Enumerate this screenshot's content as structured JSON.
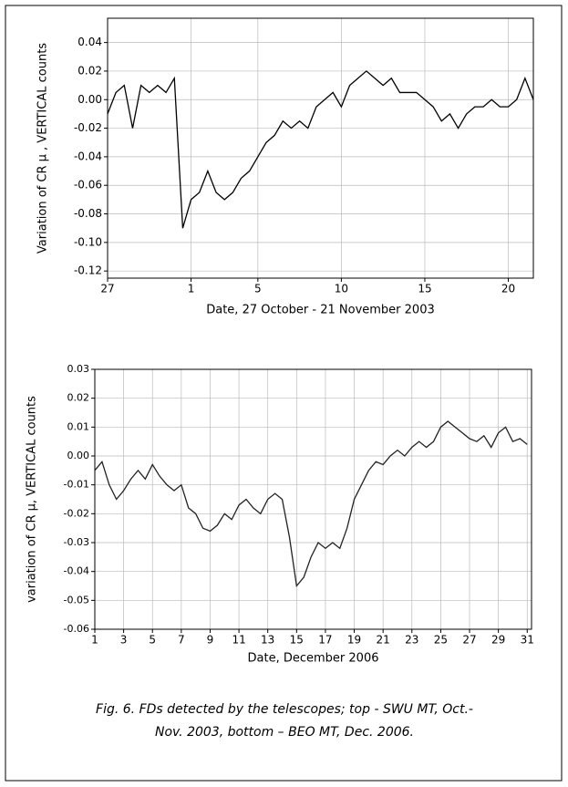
{
  "charts": [
    {
      "type": "line",
      "y_label": "Variation of CR μ , VERTICAL counts",
      "x_label": "Date, 27 October - 21 November 2003",
      "xlim": [
        0,
        25.5
      ],
      "ylim": [
        -0.125,
        0.057
      ],
      "xticks": [
        {
          "value": 0,
          "label": "27"
        },
        {
          "value": 5,
          "label": "1"
        },
        {
          "value": 9,
          "label": "5"
        },
        {
          "value": 14,
          "label": "10"
        },
        {
          "value": 19,
          "label": "15"
        },
        {
          "value": 24,
          "label": "20"
        }
      ],
      "yticks": [
        0.04,
        0.02,
        {
          "value": 0,
          "label": "0.00"
        },
        -0.02,
        -0.04,
        -0.06,
        -0.08,
        {
          "value": -0.1,
          "label": "-0.10"
        },
        -0.12
      ],
      "grid": true,
      "series": [
        {
          "color": "#000000",
          "x": [
            0,
            0.5,
            1,
            1.5,
            2,
            2.5,
            3,
            3.5,
            4,
            4.5,
            5,
            5.5,
            6,
            6.5,
            7,
            7.5,
            8,
            8.5,
            9,
            9.5,
            10,
            10.5,
            11,
            11.5,
            12,
            12.5,
            13,
            13.5,
            14,
            14.5,
            15,
            15.5,
            16,
            16.5,
            17,
            17.5,
            18,
            18.5,
            19,
            19.5,
            20,
            20.5,
            21,
            21.5,
            22,
            22.5,
            23,
            23.5,
            24,
            24.5,
            25,
            25.5
          ],
          "values": [
            -0.01,
            0.005,
            0.01,
            -0.02,
            0.01,
            0.005,
            0.01,
            0.005,
            0.015,
            -0.09,
            -0.07,
            -0.065,
            -0.05,
            -0.065,
            -0.07,
            -0.065,
            -0.055,
            -0.05,
            -0.04,
            -0.03,
            -0.025,
            -0.015,
            -0.02,
            -0.015,
            -0.02,
            -0.005,
            0.0,
            0.005,
            -0.005,
            0.01,
            0.015,
            0.02,
            0.015,
            0.01,
            0.015,
            0.005,
            0.005,
            0.005,
            0.0,
            -0.005,
            -0.015,
            -0.01,
            -0.02,
            -0.01,
            -0.005,
            -0.005,
            0.0,
            -0.005,
            -0.005,
            0.0,
            0.015,
            0.0
          ]
        }
      ]
    },
    {
      "type": "line",
      "y_label": "variation of CR μ, VERTICAL counts",
      "x_label": "Date, December 2006",
      "xlim": [
        1,
        31.3
      ],
      "ylim": [
        -0.06,
        0.03
      ],
      "xticks": [
        1,
        3,
        5,
        7,
        9,
        11,
        13,
        15,
        17,
        19,
        21,
        23,
        25,
        27,
        29,
        31
      ],
      "yticks": [
        0.03,
        0.02,
        0.01,
        {
          "value": 0,
          "label": "0.00"
        },
        -0.01,
        -0.02,
        -0.03,
        -0.04,
        -0.05,
        -0.06
      ],
      "grid": true,
      "series": [
        {
          "color": "#222222",
          "x": [
            1,
            1.5,
            2,
            2.5,
            3,
            3.5,
            4,
            4.5,
            5,
            5.5,
            6,
            6.5,
            7,
            7.5,
            8,
            8.5,
            9,
            9.5,
            10,
            10.5,
            11,
            11.5,
            12,
            12.5,
            13,
            13.5,
            14,
            14.5,
            15,
            15.5,
            16,
            16.5,
            17,
            17.5,
            18,
            18.5,
            19,
            19.5,
            20,
            20.5,
            21,
            21.5,
            22,
            22.5,
            23,
            23.5,
            24,
            24.5,
            25,
            25.5,
            26,
            26.5,
            27,
            27.5,
            28,
            28.5,
            29,
            29.5,
            30,
            30.5,
            31
          ],
          "values": [
            -0.005,
            -0.002,
            -0.01,
            -0.015,
            -0.012,
            -0.008,
            -0.005,
            -0.008,
            -0.003,
            -0.007,
            -0.01,
            -0.012,
            -0.01,
            -0.018,
            -0.02,
            -0.025,
            -0.026,
            -0.024,
            -0.02,
            -0.022,
            -0.017,
            -0.015,
            -0.018,
            -0.02,
            -0.015,
            -0.013,
            -0.015,
            -0.028,
            -0.045,
            -0.042,
            -0.035,
            -0.03,
            -0.032,
            -0.03,
            -0.032,
            -0.025,
            -0.015,
            -0.01,
            -0.005,
            -0.002,
            -0.003,
            0.0,
            0.002,
            0.0,
            0.003,
            0.005,
            0.003,
            0.005,
            0.01,
            0.012,
            0.01,
            0.008,
            0.006,
            0.005,
            0.007,
            0.003,
            0.008,
            0.01,
            0.005,
            0.006,
            0.004
          ]
        }
      ]
    }
  ],
  "caption": [
    "Fig. 6. FDs detected by the telescopes; top - SWU MT, Oct.-",
    "Nov. 2003, bottom – BEO MT, Dec. 2006."
  ]
}
